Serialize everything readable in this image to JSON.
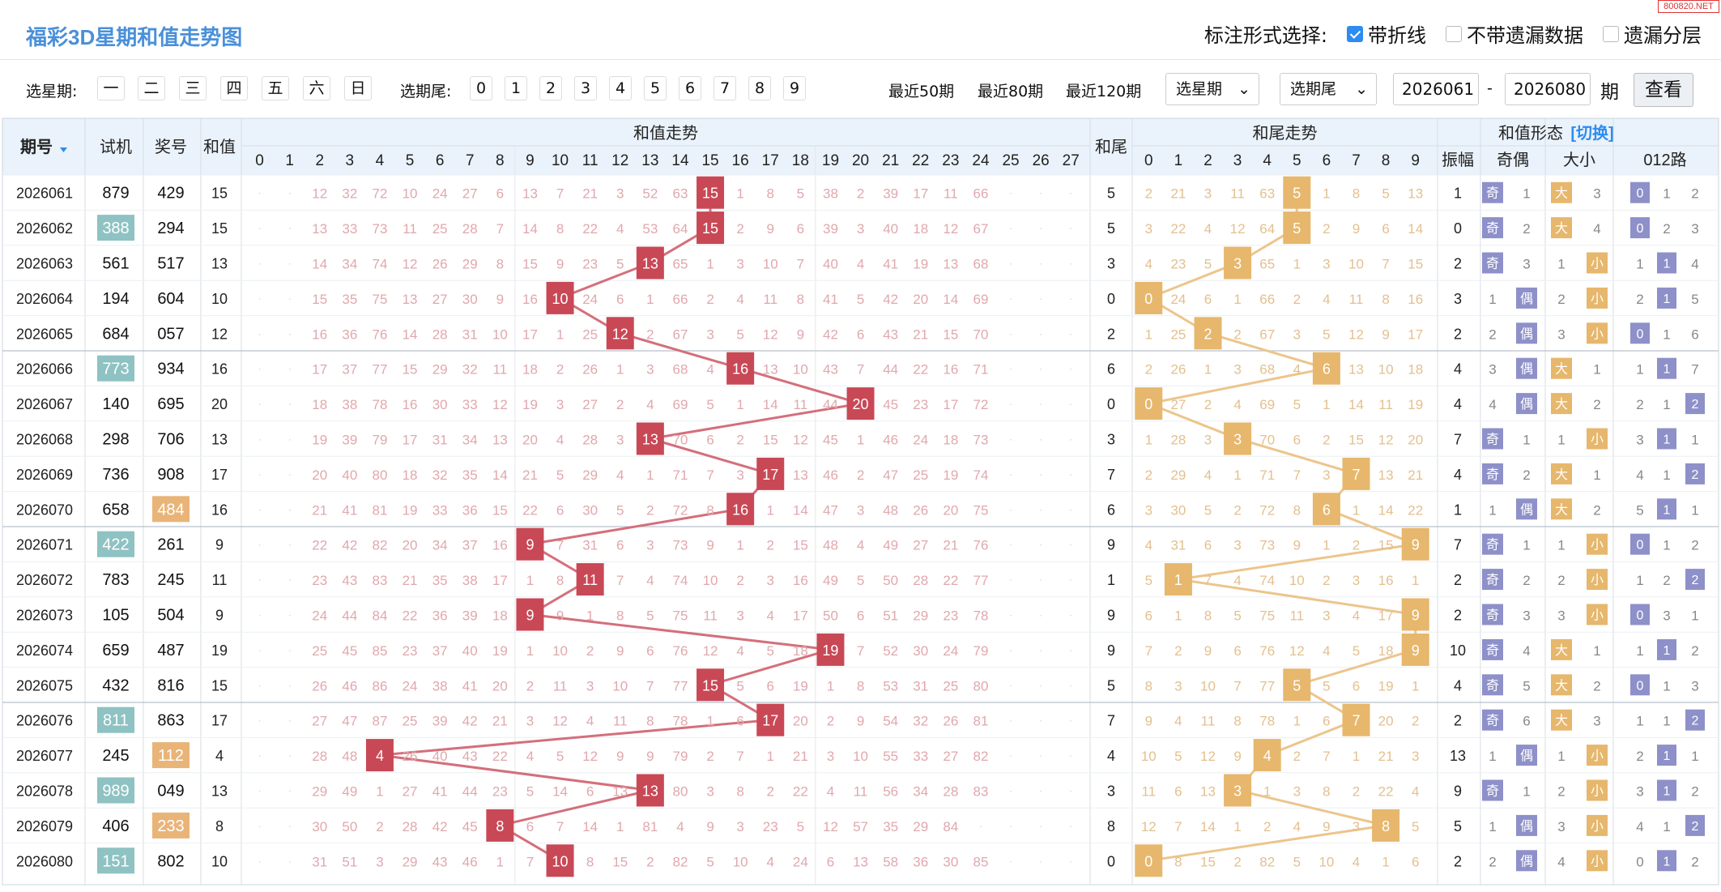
{
  "title": "福彩3D星期和值走势图",
  "watermark": "800820.NET",
  "mark_options": {
    "label": "标注形式选择:",
    "items": [
      {
        "label": "带折线",
        "checked": true
      },
      {
        "label": "不带遗漏数据",
        "checked": false
      },
      {
        "label": "遗漏分层",
        "checked": false
      }
    ]
  },
  "filters": {
    "week_label": "选星期:",
    "weekdays": [
      "一",
      "二",
      "三",
      "四",
      "五",
      "六",
      "日"
    ],
    "tail_label": "选期尾:",
    "tails": [
      "0",
      "1",
      "2",
      "3",
      "4",
      "5",
      "6",
      "7",
      "8",
      "9"
    ],
    "recent": [
      "最近50期",
      "最近80期",
      "最近120期"
    ],
    "week_select": "选星期",
    "tail_select": "选期尾",
    "from": "2026061",
    "to": "2026080",
    "sep": "-",
    "unit": "期",
    "go": "查看"
  },
  "headers": {
    "issue": "期号",
    "trial": "试机",
    "draw": "奖号",
    "sum": "和值",
    "sum_trend": "和值走势",
    "sum_tail": "和尾",
    "tail_trend": "和尾走势",
    "shape": "和值形态",
    "switch": "[切换]",
    "amp": "振幅",
    "odd_even": "奇偶",
    "big_small": "大小",
    "road": "012路"
  },
  "colors": {
    "sum_ball": "#c94856",
    "tail_ball": "#e6b76c",
    "trial_hl": "#8fc2c2",
    "draw_hl": "#e9b478",
    "odd_even": "#8e90c9",
    "big_small": "#e6b76c",
    "road": "#8e90c9",
    "sum_line": "#d46f7b",
    "tail_line": "#ecc58c"
  },
  "rows": [
    {
      "issue": "2026061",
      "trial": "879",
      "trial_hl": false,
      "draw": "429",
      "draw_hl": false,
      "sum": 15,
      "tail": 5,
      "amp": 1,
      "sum_miss": [
        "",
        "",
        "12",
        "32",
        "72",
        "10",
        "24",
        "27",
        "6",
        "13",
        "7",
        "21",
        "3",
        "52",
        "63",
        "15",
        "1",
        "8",
        "5",
        "38",
        "2",
        "39",
        "17",
        "11",
        "66",
        "",
        "",
        ""
      ],
      "tail_miss": [
        "2",
        "21",
        "3",
        "11",
        "63",
        "5",
        "1",
        "8",
        "5",
        "13"
      ],
      "oe": [
        "奇",
        "1"
      ],
      "bs": [
        "大",
        "3"
      ],
      "road": [
        "0",
        "1",
        "2"
      ]
    },
    {
      "issue": "2026062",
      "trial": "388",
      "trial_hl": true,
      "draw": "294",
      "draw_hl": false,
      "sum": 15,
      "tail": 5,
      "amp": 0,
      "sum_miss": [
        "",
        "",
        "13",
        "33",
        "73",
        "11",
        "25",
        "28",
        "7",
        "14",
        "8",
        "22",
        "4",
        "53",
        "64",
        "15",
        "2",
        "9",
        "6",
        "39",
        "3",
        "40",
        "18",
        "12",
        "67",
        "",
        "",
        ""
      ],
      "tail_miss": [
        "3",
        "22",
        "4",
        "12",
        "64",
        "5",
        "2",
        "9",
        "6",
        "14"
      ],
      "oe": [
        "奇",
        "2"
      ],
      "bs": [
        "大",
        "4"
      ],
      "road": [
        "0",
        "2",
        "3"
      ]
    },
    {
      "issue": "2026063",
      "trial": "561",
      "trial_hl": false,
      "draw": "517",
      "draw_hl": false,
      "sum": 13,
      "tail": 3,
      "amp": 2,
      "sum_miss": [
        "",
        "",
        "14",
        "34",
        "74",
        "12",
        "26",
        "29",
        "8",
        "15",
        "9",
        "23",
        "5",
        "13",
        "65",
        "1",
        "3",
        "10",
        "7",
        "40",
        "4",
        "41",
        "19",
        "13",
        "68",
        "",
        "",
        ""
      ],
      "tail_miss": [
        "4",
        "23",
        "5",
        "3",
        "65",
        "1",
        "3",
        "10",
        "7",
        "15"
      ],
      "oe": [
        "奇",
        "3"
      ],
      "bs": [
        "1",
        "小"
      ],
      "road": [
        "1",
        "1",
        "4"
      ]
    },
    {
      "issue": "2026064",
      "trial": "194",
      "trial_hl": false,
      "draw": "604",
      "draw_hl": false,
      "sum": 10,
      "tail": 0,
      "amp": 3,
      "sum_miss": [
        "",
        "",
        "15",
        "35",
        "75",
        "13",
        "27",
        "30",
        "9",
        "16",
        "10",
        "24",
        "6",
        "1",
        "66",
        "2",
        "4",
        "11",
        "8",
        "41",
        "5",
        "42",
        "20",
        "14",
        "69",
        "",
        "",
        ""
      ],
      "tail_miss": [
        "0",
        "24",
        "6",
        "1",
        "66",
        "2",
        "4",
        "11",
        "8",
        "16"
      ],
      "oe": [
        "1",
        "偶"
      ],
      "bs": [
        "2",
        "小"
      ],
      "road": [
        "2",
        "1",
        "5"
      ]
    },
    {
      "issue": "2026065",
      "trial": "684",
      "trial_hl": false,
      "draw": "057",
      "draw_hl": false,
      "sum": 12,
      "tail": 2,
      "amp": 2,
      "sum_miss": [
        "",
        "",
        "16",
        "36",
        "76",
        "14",
        "28",
        "31",
        "10",
        "17",
        "1",
        "25",
        "12",
        "2",
        "67",
        "3",
        "5",
        "12",
        "9",
        "42",
        "6",
        "43",
        "21",
        "15",
        "70",
        "",
        "",
        ""
      ],
      "tail_miss": [
        "1",
        "25",
        "2",
        "2",
        "67",
        "3",
        "5",
        "12",
        "9",
        "17"
      ],
      "oe": [
        "2",
        "偶"
      ],
      "bs": [
        "3",
        "小"
      ],
      "road": [
        "0",
        "1",
        "6"
      ]
    },
    {
      "issue": "2026066",
      "trial": "773",
      "trial_hl": true,
      "draw": "934",
      "draw_hl": false,
      "sum": 16,
      "tail": 6,
      "amp": 4,
      "sum_miss": [
        "",
        "",
        "17",
        "37",
        "77",
        "15",
        "29",
        "32",
        "11",
        "18",
        "2",
        "26",
        "1",
        "3",
        "68",
        "4",
        "16",
        "13",
        "10",
        "43",
        "7",
        "44",
        "22",
        "16",
        "71",
        "",
        "",
        ""
      ],
      "tail_miss": [
        "2",
        "26",
        "1",
        "3",
        "68",
        "4",
        "6",
        "13",
        "10",
        "18"
      ],
      "oe": [
        "3",
        "偶"
      ],
      "bs": [
        "大",
        "1"
      ],
      "road": [
        "1",
        "1",
        "7"
      ]
    },
    {
      "issue": "2026067",
      "trial": "140",
      "trial_hl": false,
      "draw": "695",
      "draw_hl": false,
      "sum": 20,
      "tail": 0,
      "amp": 4,
      "sum_miss": [
        "",
        "",
        "18",
        "38",
        "78",
        "16",
        "30",
        "33",
        "12",
        "19",
        "3",
        "27",
        "2",
        "4",
        "69",
        "5",
        "1",
        "14",
        "11",
        "44",
        "20",
        "45",
        "23",
        "17",
        "72",
        "",
        "",
        ""
      ],
      "tail_miss": [
        "0",
        "27",
        "2",
        "4",
        "69",
        "5",
        "1",
        "14",
        "11",
        "19"
      ],
      "oe": [
        "4",
        "偶"
      ],
      "bs": [
        "大",
        "2"
      ],
      "road": [
        "2",
        "1",
        "2"
      ]
    },
    {
      "issue": "2026068",
      "trial": "298",
      "trial_hl": false,
      "draw": "706",
      "draw_hl": false,
      "sum": 13,
      "tail": 3,
      "amp": 7,
      "sum_miss": [
        "",
        "",
        "19",
        "39",
        "79",
        "17",
        "31",
        "34",
        "13",
        "20",
        "4",
        "28",
        "3",
        "13",
        "70",
        "6",
        "2",
        "15",
        "12",
        "45",
        "1",
        "46",
        "24",
        "18",
        "73",
        "",
        "",
        ""
      ],
      "tail_miss": [
        "1",
        "28",
        "3",
        "3",
        "70",
        "6",
        "2",
        "15",
        "12",
        "20"
      ],
      "oe": [
        "奇",
        "1"
      ],
      "bs": [
        "1",
        "小"
      ],
      "road": [
        "3",
        "1",
        "1"
      ]
    },
    {
      "issue": "2026069",
      "trial": "736",
      "trial_hl": false,
      "draw": "908",
      "draw_hl": false,
      "sum": 17,
      "tail": 7,
      "amp": 4,
      "sum_miss": [
        "",
        "",
        "20",
        "40",
        "80",
        "18",
        "32",
        "35",
        "14",
        "21",
        "5",
        "29",
        "4",
        "1",
        "71",
        "7",
        "3",
        "17",
        "13",
        "46",
        "2",
        "47",
        "25",
        "19",
        "74",
        "",
        "",
        ""
      ],
      "tail_miss": [
        "2",
        "29",
        "4",
        "1",
        "71",
        "7",
        "3",
        "7",
        "13",
        "21"
      ],
      "oe": [
        "奇",
        "2"
      ],
      "bs": [
        "大",
        "1"
      ],
      "road": [
        "4",
        "1",
        "2"
      ]
    },
    {
      "issue": "2026070",
      "trial": "658",
      "trial_hl": false,
      "draw": "484",
      "draw_hl": true,
      "sum": 16,
      "tail": 6,
      "amp": 1,
      "sum_miss": [
        "",
        "",
        "21",
        "41",
        "81",
        "19",
        "33",
        "36",
        "15",
        "22",
        "6",
        "30",
        "5",
        "2",
        "72",
        "8",
        "16",
        "1",
        "14",
        "47",
        "3",
        "48",
        "26",
        "20",
        "75",
        "",
        "",
        ""
      ],
      "tail_miss": [
        "3",
        "30",
        "5",
        "2",
        "72",
        "8",
        "6",
        "1",
        "14",
        "22"
      ],
      "oe": [
        "1",
        "偶"
      ],
      "bs": [
        "大",
        "2"
      ],
      "road": [
        "5",
        "1",
        "1"
      ]
    },
    {
      "issue": "2026071",
      "trial": "422",
      "trial_hl": true,
      "draw": "261",
      "draw_hl": false,
      "sum": 9,
      "tail": 9,
      "amp": 7,
      "sum_miss": [
        "",
        "",
        "22",
        "42",
        "82",
        "20",
        "34",
        "37",
        "16",
        "9",
        "7",
        "31",
        "6",
        "3",
        "73",
        "9",
        "1",
        "2",
        "15",
        "48",
        "4",
        "49",
        "27",
        "21",
        "76",
        "",
        "",
        ""
      ],
      "tail_miss": [
        "4",
        "31",
        "6",
        "3",
        "73",
        "9",
        "1",
        "2",
        "15",
        "9"
      ],
      "oe": [
        "奇",
        "1"
      ],
      "bs": [
        "1",
        "小"
      ],
      "road": [
        "0",
        "1",
        "2"
      ]
    },
    {
      "issue": "2026072",
      "trial": "783",
      "trial_hl": false,
      "draw": "245",
      "draw_hl": false,
      "sum": 11,
      "tail": 1,
      "amp": 2,
      "sum_miss": [
        "",
        "",
        "23",
        "43",
        "83",
        "21",
        "35",
        "38",
        "17",
        "1",
        "8",
        "11",
        "7",
        "4",
        "74",
        "10",
        "2",
        "3",
        "16",
        "49",
        "5",
        "50",
        "28",
        "22",
        "77",
        "",
        "",
        ""
      ],
      "tail_miss": [
        "5",
        "1",
        "7",
        "4",
        "74",
        "10",
        "2",
        "3",
        "16",
        "1"
      ],
      "oe": [
        "奇",
        "2"
      ],
      "bs": [
        "2",
        "小"
      ],
      "road": [
        "1",
        "2",
        "2"
      ]
    },
    {
      "issue": "2026073",
      "trial": "105",
      "trial_hl": false,
      "draw": "504",
      "draw_hl": false,
      "sum": 9,
      "tail": 9,
      "amp": 2,
      "sum_miss": [
        "",
        "",
        "24",
        "44",
        "84",
        "22",
        "36",
        "39",
        "18",
        "9",
        "9",
        "1",
        "8",
        "5",
        "75",
        "11",
        "3",
        "4",
        "17",
        "50",
        "6",
        "51",
        "29",
        "23",
        "78",
        "",
        "",
        ""
      ],
      "tail_miss": [
        "6",
        "1",
        "8",
        "5",
        "75",
        "11",
        "3",
        "4",
        "17",
        "9"
      ],
      "oe": [
        "奇",
        "3"
      ],
      "bs": [
        "3",
        "小"
      ],
      "road": [
        "0",
        "3",
        "1"
      ]
    },
    {
      "issue": "2026074",
      "trial": "659",
      "trial_hl": false,
      "draw": "487",
      "draw_hl": false,
      "sum": 19,
      "tail": 9,
      "amp": 10,
      "sum_miss": [
        "",
        "",
        "25",
        "45",
        "85",
        "23",
        "37",
        "40",
        "19",
        "1",
        "10",
        "2",
        "9",
        "6",
        "76",
        "12",
        "4",
        "5",
        "18",
        "19",
        "7",
        "52",
        "30",
        "24",
        "79",
        "",
        "",
        ""
      ],
      "tail_miss": [
        "7",
        "2",
        "9",
        "6",
        "76",
        "12",
        "4",
        "5",
        "18",
        "9"
      ],
      "oe": [
        "奇",
        "4"
      ],
      "bs": [
        "大",
        "1"
      ],
      "road": [
        "1",
        "1",
        "2"
      ]
    },
    {
      "issue": "2026075",
      "trial": "432",
      "trial_hl": false,
      "draw": "816",
      "draw_hl": false,
      "sum": 15,
      "tail": 5,
      "amp": 4,
      "sum_miss": [
        "",
        "",
        "26",
        "46",
        "86",
        "24",
        "38",
        "41",
        "20",
        "2",
        "11",
        "3",
        "10",
        "7",
        "77",
        "15",
        "5",
        "6",
        "19",
        "1",
        "8",
        "53",
        "31",
        "25",
        "80",
        "",
        "",
        ""
      ],
      "tail_miss": [
        "8",
        "3",
        "10",
        "7",
        "77",
        "5",
        "5",
        "6",
        "19",
        "1"
      ],
      "oe": [
        "奇",
        "5"
      ],
      "bs": [
        "大",
        "2"
      ],
      "road": [
        "0",
        "1",
        "3"
      ]
    },
    {
      "issue": "2026076",
      "trial": "811",
      "trial_hl": true,
      "draw": "863",
      "draw_hl": false,
      "sum": 17,
      "tail": 7,
      "amp": 2,
      "sum_miss": [
        "",
        "",
        "27",
        "47",
        "87",
        "25",
        "39",
        "42",
        "21",
        "3",
        "12",
        "4",
        "11",
        "8",
        "78",
        "1",
        "6",
        "17",
        "20",
        "2",
        "9",
        "54",
        "32",
        "26",
        "81",
        "",
        "",
        ""
      ],
      "tail_miss": [
        "9",
        "4",
        "11",
        "8",
        "78",
        "1",
        "6",
        "7",
        "20",
        "2"
      ],
      "oe": [
        "奇",
        "6"
      ],
      "bs": [
        "大",
        "3"
      ],
      "road": [
        "1",
        "1",
        "2"
      ]
    },
    {
      "issue": "2026077",
      "trial": "245",
      "trial_hl": false,
      "draw": "112",
      "draw_hl": true,
      "sum": 4,
      "tail": 4,
      "amp": 13,
      "sum_miss": [
        "",
        "",
        "28",
        "48",
        "4",
        "26",
        "40",
        "43",
        "22",
        "4",
        "5",
        "12",
        "9",
        "9",
        "79",
        "2",
        "7",
        "1",
        "21",
        "3",
        "10",
        "55",
        "33",
        "27",
        "82",
        "",
        "",
        ""
      ],
      "tail_miss": [
        "10",
        "5",
        "12",
        "9",
        "4",
        "2",
        "7",
        "1",
        "21",
        "3"
      ],
      "oe": [
        "1",
        "偶"
      ],
      "bs": [
        "1",
        "小"
      ],
      "road": [
        "2",
        "1",
        "1"
      ]
    },
    {
      "issue": "2026078",
      "trial": "989",
      "trial_hl": true,
      "draw": "049",
      "draw_hl": false,
      "sum": 13,
      "tail": 3,
      "amp": 9,
      "sum_miss": [
        "",
        "",
        "29",
        "49",
        "1",
        "27",
        "41",
        "44",
        "23",
        "5",
        "14",
        "6",
        "13",
        "13",
        "80",
        "3",
        "8",
        "2",
        "22",
        "4",
        "11",
        "56",
        "34",
        "28",
        "83",
        "",
        "",
        ""
      ],
      "tail_miss": [
        "11",
        "6",
        "13",
        "3",
        "1",
        "3",
        "8",
        "2",
        "22",
        "4"
      ],
      "oe": [
        "奇",
        "1"
      ],
      "bs": [
        "2",
        "小"
      ],
      "road": [
        "3",
        "1",
        "2"
      ]
    },
    {
      "issue": "2026079",
      "trial": "406",
      "trial_hl": false,
      "draw": "233",
      "draw_hl": true,
      "sum": 8,
      "tail": 8,
      "amp": 5,
      "sum_miss": [
        "",
        "",
        "30",
        "50",
        "2",
        "28",
        "42",
        "45",
        "8",
        "6",
        "7",
        "14",
        "1",
        "81",
        "4",
        "9",
        "3",
        "23",
        "5",
        "12",
        "57",
        "35",
        "29",
        "84",
        "",
        "",
        "",
        ""
      ],
      "tail_miss": [
        "12",
        "7",
        "14",
        "1",
        "2",
        "4",
        "9",
        "3",
        "8",
        "5"
      ],
      "oe": [
        "1",
        "偶"
      ],
      "bs": [
        "3",
        "小"
      ],
      "road": [
        "4",
        "1",
        "2"
      ]
    },
    {
      "issue": "2026080",
      "trial": "151",
      "trial_hl": true,
      "draw": "802",
      "draw_hl": false,
      "sum": 10,
      "tail": 0,
      "amp": 2,
      "sum_miss": [
        "",
        "",
        "31",
        "51",
        "3",
        "29",
        "43",
        "46",
        "1",
        "7",
        "10",
        "8",
        "15",
        "2",
        "82",
        "5",
        "10",
        "4",
        "24",
        "6",
        "13",
        "58",
        "36",
        "30",
        "85",
        "",
        "",
        ""
      ],
      "tail_miss": [
        "0",
        "8",
        "15",
        "2",
        "82",
        "5",
        "10",
        "4",
        "1",
        "6"
      ],
      "oe": [
        "2",
        "偶"
      ],
      "bs": [
        "4",
        "小"
      ],
      "road": [
        "0",
        "1",
        "2"
      ]
    }
  ]
}
